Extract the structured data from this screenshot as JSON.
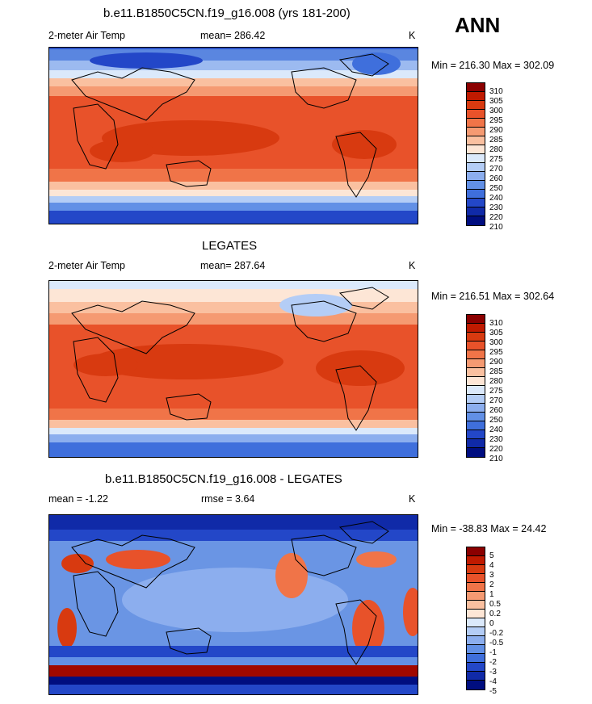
{
  "season": "ANN",
  "panels": [
    {
      "title": "b.e11.B1850C5CN.f19_g16.008 (yrs 181-200)",
      "left_label": "2-meter Air Temp",
      "center_label": "mean= 286.42",
      "units": "K",
      "minmax": "Min = 216.30 Max = 302.09",
      "colorbar": {
        "labels": [
          "310",
          "305",
          "300",
          "295",
          "290",
          "285",
          "280",
          "275",
          "270",
          "260",
          "250",
          "240",
          "230",
          "220",
          "210"
        ],
        "colors": [
          "#8b0000",
          "#c01a00",
          "#d83a10",
          "#e8522a",
          "#f07448",
          "#f59a72",
          "#fac0a0",
          "#fde6d6",
          "#dbe9fb",
          "#b4cdf6",
          "#8caeee",
          "#6290e6",
          "#3f6fdc",
          "#2347c8",
          "#102aa8",
          "#000e80"
        ]
      }
    },
    {
      "title": "LEGATES",
      "left_label": "2-meter Air Temp",
      "center_label": "mean= 287.64",
      "units": "K",
      "minmax": "Min = 216.51 Max = 302.64",
      "colorbar": {
        "labels": [
          "310",
          "305",
          "300",
          "295",
          "290",
          "285",
          "280",
          "275",
          "270",
          "260",
          "250",
          "240",
          "230",
          "220",
          "210"
        ],
        "colors": [
          "#8b0000",
          "#c01a00",
          "#d83a10",
          "#e8522a",
          "#f07448",
          "#f59a72",
          "#fac0a0",
          "#fde6d6",
          "#dbe9fb",
          "#b4cdf6",
          "#8caeee",
          "#6290e6",
          "#3f6fdc",
          "#2347c8",
          "#102aa8",
          "#000e80"
        ]
      }
    },
    {
      "title": "b.e11.B1850C5CN.f19_g16.008 - LEGATES",
      "left_label": "mean =  -1.22",
      "center_label": "rmse =   3.64",
      "units": "K",
      "minmax": "Min = -38.83 Max =  24.42",
      "colorbar": {
        "labels": [
          "5",
          "4",
          "3",
          "2",
          "1",
          "0.5",
          "0.2",
          "0",
          "-0.2",
          "-0.5",
          "-1",
          "-2",
          "-3",
          "-4",
          "-5"
        ],
        "colors": [
          "#8b0000",
          "#c01a00",
          "#d83a10",
          "#e8522a",
          "#f07448",
          "#f59a72",
          "#fac0a0",
          "#fde6d6",
          "#dbe9fb",
          "#b4cdf6",
          "#8caeee",
          "#6290e6",
          "#3f6fdc",
          "#2347c8",
          "#102aa8",
          "#000e80"
        ]
      }
    }
  ]
}
